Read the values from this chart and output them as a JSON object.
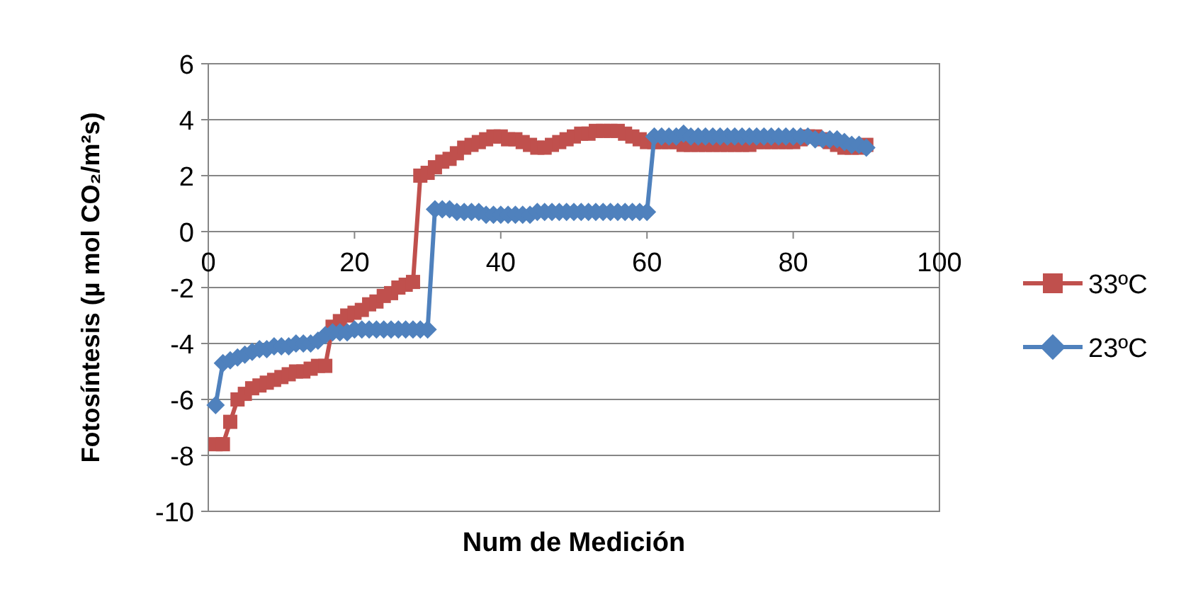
{
  "chart_data": {
    "type": "line",
    "xlabel": "Num de Medición",
    "ylabel": "Fotosíntesis (µ mol CO₂/m²s)",
    "xlim": [
      0,
      100
    ],
    "xticks": [
      0,
      20,
      40,
      60,
      80,
      100
    ],
    "ylim": [
      -10,
      6
    ],
    "yticks": [
      -10,
      -8,
      -6,
      -4,
      -2,
      0,
      2,
      4,
      6
    ],
    "grid": "y",
    "legend": "right",
    "x": [
      1,
      2,
      3,
      4,
      5,
      6,
      7,
      8,
      9,
      10,
      11,
      12,
      13,
      14,
      15,
      16,
      17,
      18,
      19,
      20,
      21,
      22,
      23,
      24,
      25,
      26,
      27,
      28,
      29,
      30,
      31,
      32,
      33,
      34,
      35,
      36,
      37,
      38,
      39,
      40,
      41,
      42,
      43,
      44,
      45,
      46,
      47,
      48,
      49,
      50,
      51,
      52,
      53,
      54,
      55,
      56,
      57,
      58,
      59,
      60,
      61,
      62,
      63,
      64,
      65,
      66,
      67,
      68,
      69,
      70,
      71,
      72,
      73,
      74,
      75,
      76,
      77,
      78,
      79,
      80,
      81,
      82,
      83,
      84,
      85,
      86,
      87,
      88,
      89,
      90
    ],
    "series": [
      {
        "name": "33ºC",
        "color": "#c0504d",
        "marker": "square",
        "values": [
          -7.6,
          -7.6,
          -6.8,
          -6.0,
          -5.8,
          -5.6,
          -5.5,
          -5.4,
          -5.3,
          -5.2,
          -5.1,
          -5.0,
          -5.0,
          -4.9,
          -4.8,
          -4.8,
          -3.4,
          -3.2,
          -3.0,
          -2.9,
          -2.8,
          -2.6,
          -2.5,
          -2.3,
          -2.2,
          -2.0,
          -1.9,
          -1.8,
          2.0,
          2.1,
          2.3,
          2.5,
          2.6,
          2.8,
          3.0,
          3.1,
          3.2,
          3.3,
          3.4,
          3.4,
          3.3,
          3.3,
          3.2,
          3.1,
          3.0,
          3.0,
          3.1,
          3.2,
          3.3,
          3.4,
          3.5,
          3.5,
          3.6,
          3.6,
          3.6,
          3.6,
          3.5,
          3.4,
          3.3,
          3.2,
          3.2,
          3.2,
          3.2,
          3.2,
          3.1,
          3.1,
          3.1,
          3.1,
          3.1,
          3.1,
          3.1,
          3.1,
          3.1,
          3.1,
          3.2,
          3.2,
          3.2,
          3.2,
          3.2,
          3.2,
          3.3,
          3.4,
          3.4,
          3.3,
          3.2,
          3.1,
          3.0,
          3.0,
          3.0,
          3.1
        ]
      },
      {
        "name": "23ºC",
        "color": "#4f81bd",
        "marker": "diamond",
        "values": [
          -6.2,
          -4.7,
          -4.6,
          -4.5,
          -4.4,
          -4.3,
          -4.2,
          -4.2,
          -4.1,
          -4.1,
          -4.1,
          -4.0,
          -4.0,
          -4.0,
          -3.9,
          -3.7,
          -3.6,
          -3.6,
          -3.6,
          -3.5,
          -3.5,
          -3.5,
          -3.5,
          -3.5,
          -3.5,
          -3.5,
          -3.5,
          -3.5,
          -3.5,
          -3.5,
          0.8,
          0.8,
          0.8,
          0.7,
          0.7,
          0.7,
          0.7,
          0.6,
          0.6,
          0.6,
          0.6,
          0.6,
          0.6,
          0.6,
          0.7,
          0.7,
          0.7,
          0.7,
          0.7,
          0.7,
          0.7,
          0.7,
          0.7,
          0.7,
          0.7,
          0.7,
          0.7,
          0.7,
          0.7,
          0.7,
          3.4,
          3.4,
          3.4,
          3.4,
          3.5,
          3.4,
          3.4,
          3.4,
          3.4,
          3.4,
          3.4,
          3.4,
          3.4,
          3.4,
          3.4,
          3.4,
          3.4,
          3.4,
          3.4,
          3.4,
          3.4,
          3.4,
          3.3,
          3.3,
          3.3,
          3.3,
          3.2,
          3.1,
          3.1,
          3.0
        ]
      }
    ]
  }
}
